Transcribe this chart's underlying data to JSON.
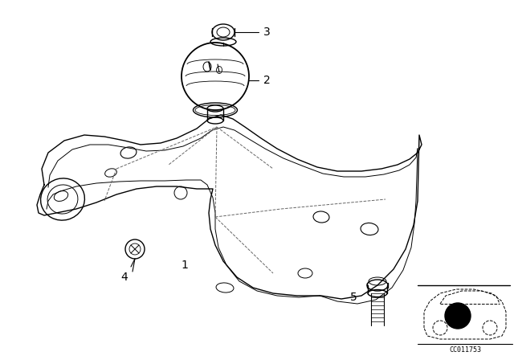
{
  "background_color": "#ffffff",
  "line_color": "#000000",
  "fig_width": 6.4,
  "fig_height": 4.48,
  "dpi": 100,
  "watermark": "CC011753",
  "label_fontsize": 10
}
